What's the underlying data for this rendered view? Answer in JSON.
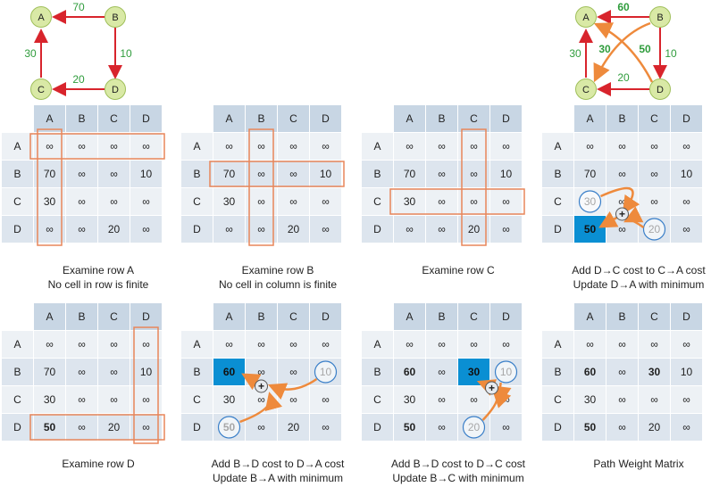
{
  "graph_left": {
    "nodes": [
      "A",
      "B",
      "C",
      "D"
    ],
    "edges": [
      {
        "from": "B",
        "to": "A",
        "weight": "70"
      },
      {
        "from": "B",
        "to": "D",
        "weight": "10"
      },
      {
        "from": "C",
        "to": "A",
        "weight": "30"
      },
      {
        "from": "D",
        "to": "C",
        "weight": "20"
      }
    ]
  },
  "graph_right": {
    "nodes": [
      "A",
      "B",
      "C",
      "D"
    ],
    "edges": [
      {
        "from": "B",
        "to": "A",
        "weight": "60"
      },
      {
        "from": "B",
        "to": "D",
        "weight": "10"
      },
      {
        "from": "C",
        "to": "A",
        "weight": "30"
      },
      {
        "from": "D",
        "to": "C",
        "weight": "20"
      },
      {
        "from": "B",
        "to": "C",
        "weight": "30"
      },
      {
        "from": "D",
        "to": "A",
        "weight": "50"
      }
    ]
  },
  "headers": [
    "A",
    "B",
    "C",
    "D"
  ],
  "panels": [
    {
      "caption": [
        "Examine row A",
        "No cell in row is finite"
      ],
      "rows": [
        [
          "∞",
          "∞",
          "∞",
          "∞"
        ],
        [
          "70",
          "∞",
          "∞",
          "10"
        ],
        [
          "30",
          "∞",
          "∞",
          "∞"
        ],
        [
          "∞",
          "∞",
          "20",
          "∞"
        ]
      ]
    },
    {
      "caption": [
        "Examine row B",
        "No cell in column is finite"
      ],
      "rows": [
        [
          "∞",
          "∞",
          "∞",
          "∞"
        ],
        [
          "70",
          "∞",
          "∞",
          "10"
        ],
        [
          "30",
          "∞",
          "∞",
          "∞"
        ],
        [
          "∞",
          "∞",
          "20",
          "∞"
        ]
      ]
    },
    {
      "caption": [
        "Examine row C"
      ],
      "rows": [
        [
          "∞",
          "∞",
          "∞",
          "∞"
        ],
        [
          "70",
          "∞",
          "∞",
          "10"
        ],
        [
          "30",
          "∞",
          "∞",
          "∞"
        ],
        [
          "∞",
          "∞",
          "20",
          "∞"
        ]
      ]
    },
    {
      "caption": [
        "Add D→C cost to C→A cost",
        "Update D→A with minimum"
      ],
      "rows": [
        [
          "∞",
          "∞",
          "∞",
          "∞"
        ],
        [
          "70",
          "∞",
          "∞",
          "10"
        ],
        [
          "30",
          "∞",
          "∞",
          "∞"
        ],
        [
          "50",
          "∞",
          "20",
          "∞"
        ]
      ]
    },
    {
      "caption": [
        "Examine row D"
      ],
      "rows": [
        [
          "∞",
          "∞",
          "∞",
          "∞"
        ],
        [
          "70",
          "∞",
          "∞",
          "10"
        ],
        [
          "30",
          "∞",
          "∞",
          "∞"
        ],
        [
          "50",
          "∞",
          "20",
          "∞"
        ]
      ]
    },
    {
      "caption": [
        "Add B→D cost to D→A cost",
        "Update B→A with minimum"
      ],
      "rows": [
        [
          "∞",
          "∞",
          "∞",
          "∞"
        ],
        [
          "60",
          "∞",
          "∞",
          "10"
        ],
        [
          "30",
          "∞",
          "∞",
          "∞"
        ],
        [
          "50",
          "∞",
          "20",
          "∞"
        ]
      ]
    },
    {
      "caption": [
        "Add B→D cost to D→C cost",
        "Update B→C with minimum"
      ],
      "rows": [
        [
          "∞",
          "∞",
          "∞",
          "∞"
        ],
        [
          "60",
          "∞",
          "30",
          "10"
        ],
        [
          "30",
          "∞",
          "∞",
          "∞"
        ],
        [
          "50",
          "∞",
          "20",
          "∞"
        ]
      ]
    },
    {
      "caption": [
        "Path Weight Matrix"
      ],
      "rows": [
        [
          "∞",
          "∞",
          "∞",
          "∞"
        ],
        [
          "60",
          "∞",
          "30",
          "10"
        ],
        [
          "30",
          "∞",
          "∞",
          "∞"
        ],
        [
          "50",
          "∞",
          "20",
          "∞"
        ]
      ]
    }
  ],
  "plus_symbol": "+",
  "colors": {
    "edge": "#d8242c",
    "new_edge": "#ee8a3c",
    "highlight": "#0a8fd3",
    "node_fill": "#d9e9a6",
    "weight_text": "#2f9c3c"
  }
}
